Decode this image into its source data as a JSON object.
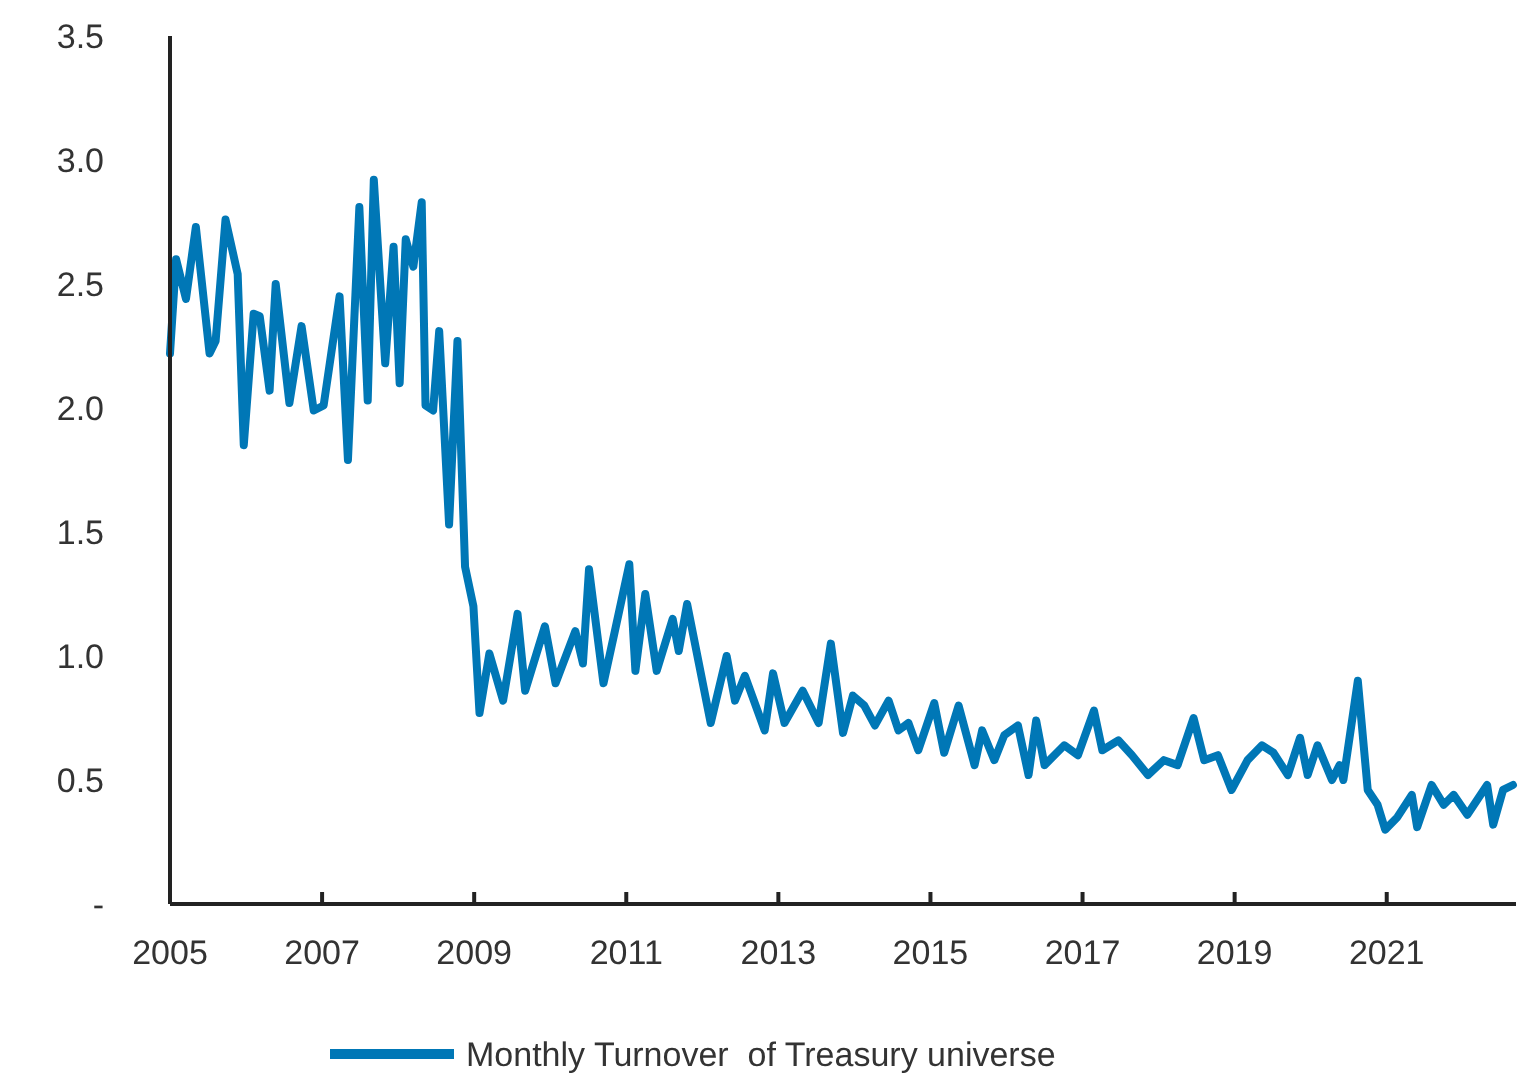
{
  "chart_data": {
    "type": "line",
    "x": [
      2005.0,
      2005.08,
      2005.21,
      2005.34,
      2005.52,
      2005.6,
      2005.73,
      2005.89,
      2005.97,
      2006.1,
      2006.18,
      2006.31,
      2006.39,
      2006.57,
      2006.73,
      2006.89,
      2007.02,
      2007.23,
      2007.34,
      2007.49,
      2007.6,
      2007.68,
      2007.83,
      2007.94,
      2008.02,
      2008.1,
      2008.2,
      2008.31,
      2008.36,
      2008.46,
      2008.54,
      2008.67,
      2008.78,
      2008.88,
      2008.99,
      2009.07,
      2009.2,
      2009.38,
      2009.57,
      2009.67,
      2009.93,
      2010.07,
      2010.33,
      2010.43,
      2010.51,
      2010.7,
      2010.85,
      2011.04,
      2011.12,
      2011.25,
      2011.4,
      2011.61,
      2011.69,
      2011.8,
      2012.11,
      2012.32,
      2012.43,
      2012.56,
      2012.82,
      2012.93,
      2013.08,
      2013.32,
      2013.53,
      2013.69,
      2013.85,
      2013.98,
      2014.13,
      2014.27,
      2014.45,
      2014.58,
      2014.71,
      2014.84,
      2015.05,
      2015.18,
      2015.37,
      2015.58,
      2015.68,
      2015.84,
      2015.97,
      2016.15,
      2016.29,
      2016.39,
      2016.5,
      2016.76,
      2016.94,
      2017.15,
      2017.26,
      2017.47,
      2017.65,
      2017.86,
      2018.07,
      2018.25,
      2018.46,
      2018.6,
      2018.78,
      2018.96,
      2019.17,
      2019.36,
      2019.51,
      2019.7,
      2019.86,
      2019.96,
      2020.09,
      2020.28,
      2020.38,
      2020.43,
      2020.62,
      2020.75,
      2020.88,
      2020.98,
      2021.14,
      2021.33,
      2021.4,
      2021.59,
      2021.75,
      2021.88,
      2022.06,
      2022.32,
      2022.4,
      2022.53,
      2022.66
    ],
    "series": [
      {
        "name": "Monthly Turnover  of Treasury universe",
        "color": "#0077b6",
        "values": [
          2.22,
          2.6,
          2.44,
          2.73,
          2.22,
          2.27,
          2.76,
          2.54,
          1.85,
          2.38,
          2.37,
          2.07,
          2.5,
          2.02,
          2.33,
          1.99,
          2.01,
          2.45,
          1.79,
          2.81,
          2.03,
          2.92,
          2.18,
          2.65,
          2.1,
          2.68,
          2.57,
          2.83,
          2.01,
          1.99,
          2.31,
          1.53,
          2.27,
          1.36,
          1.2,
          0.77,
          1.01,
          0.82,
          1.17,
          0.86,
          1.12,
          0.89,
          1.1,
          0.97,
          1.35,
          0.89,
          1.1,
          1.37,
          0.94,
          1.25,
          0.94,
          1.15,
          1.02,
          1.21,
          0.73,
          1.0,
          0.82,
          0.92,
          0.7,
          0.93,
          0.73,
          0.86,
          0.73,
          1.05,
          0.69,
          0.84,
          0.8,
          0.72,
          0.82,
          0.7,
          0.73,
          0.62,
          0.81,
          0.61,
          0.8,
          0.56,
          0.7,
          0.58,
          0.68,
          0.72,
          0.52,
          0.74,
          0.56,
          0.64,
          0.6,
          0.78,
          0.62,
          0.66,
          0.6,
          0.52,
          0.58,
          0.56,
          0.75,
          0.58,
          0.6,
          0.46,
          0.58,
          0.64,
          0.61,
          0.52,
          0.67,
          0.52,
          0.64,
          0.5,
          0.56,
          0.5,
          0.9,
          0.46,
          0.4,
          0.3,
          0.35,
          0.44,
          0.31,
          0.48,
          0.4,
          0.44,
          0.36,
          0.48,
          0.32,
          0.46,
          0.48
        ]
      }
    ],
    "xlim": [
      2005,
      2022.7
    ],
    "xticks": [
      2005,
      2007,
      2009,
      2011,
      2013,
      2015,
      2017,
      2019,
      2021
    ],
    "ylim": [
      0,
      3.5
    ],
    "yticks": [
      {
        "value": 0,
        "label": "-"
      },
      0.5,
      {
        "value": 1,
        "label": "1.0"
      },
      1.5,
      {
        "value": 2,
        "label": "2.0"
      },
      2.5,
      {
        "value": 3,
        "label": "3.0"
      },
      3.5
    ],
    "legend": "bottom",
    "grid": false,
    "marker": "none",
    "line_style": "solid"
  }
}
